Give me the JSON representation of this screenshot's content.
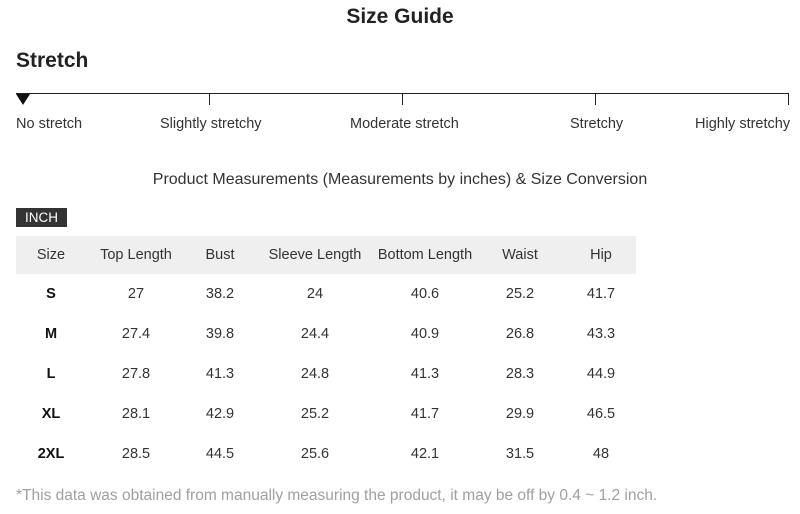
{
  "title": "Size Guide",
  "stretch": {
    "heading": "Stretch",
    "levels": [
      "No stretch",
      "Slightly stretchy",
      "Moderate stretch",
      "Stretchy",
      "Highly stretchy"
    ],
    "selected_level": "No stretch"
  },
  "subtitle": "Product Measurements (Measurements by inches) & Size Conversion",
  "unit_badge": "INCH",
  "table": {
    "columns": [
      "Size",
      "Top Length",
      "Bust",
      "Sleeve Length",
      "Bottom Length",
      "Waist",
      "Hip"
    ],
    "rows": [
      [
        "S",
        "27",
        "38.2",
        "24",
        "40.6",
        "25.2",
        "41.7"
      ],
      [
        "M",
        "27.4",
        "39.8",
        "24.4",
        "40.9",
        "26.8",
        "43.3"
      ],
      [
        "L",
        "27.8",
        "41.3",
        "24.8",
        "41.3",
        "28.3",
        "44.9"
      ],
      [
        "XL",
        "28.1",
        "42.9",
        "25.2",
        "41.7",
        "29.9",
        "46.5"
      ],
      [
        "2XL",
        "28.5",
        "44.5",
        "25.6",
        "42.1",
        "31.5",
        "48"
      ]
    ]
  },
  "footnote": "*This data was obtained from manually measuring the product, it may be off by 0.4 ~ 1.2 inch."
}
